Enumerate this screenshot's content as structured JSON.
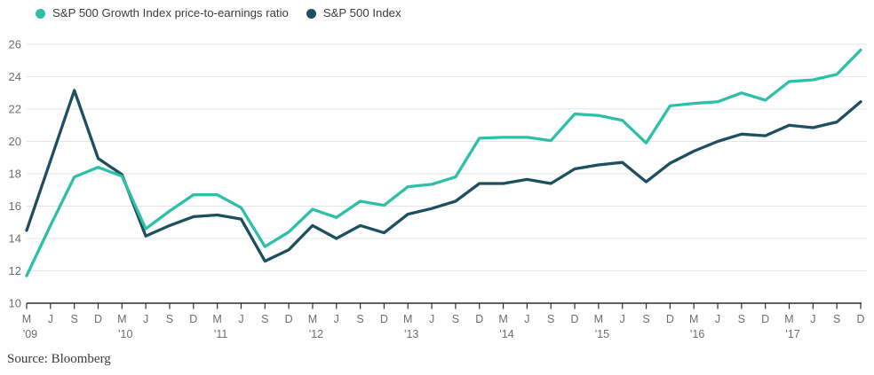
{
  "legend": {
    "items": [
      {
        "label": "S&P 500 Growth Index price-to-earnings ratio"
      },
      {
        "label": "S&P 500 Index"
      }
    ]
  },
  "source_note": "Source: Bloomberg",
  "chart_data": {
    "type": "line",
    "title": "",
    "xlabel": "",
    "ylabel": "",
    "ylim": [
      10,
      26
    ],
    "y_ticks": [
      10,
      12,
      14,
      16,
      18,
      20,
      22,
      24,
      26
    ],
    "grid": "horizontal",
    "legend_position": "top-left",
    "x_tick_labels": [
      "M",
      "J",
      "S",
      "D",
      "M",
      "J",
      "S",
      "D",
      "M",
      "J",
      "S",
      "D",
      "M",
      "J",
      "S",
      "D",
      "M",
      "J",
      "S",
      "D",
      "M",
      "J",
      "S",
      "D",
      "M",
      "J",
      "S",
      "D",
      "M",
      "J",
      "S",
      "D",
      "M",
      "J",
      "S",
      "D"
    ],
    "x_year_labels": [
      "'09",
      "'10",
      "'11",
      "'12",
      "'13",
      "'14",
      "'15",
      "'16",
      "'17"
    ],
    "x_year_tick_indices": [
      0,
      4,
      8,
      12,
      16,
      20,
      24,
      28,
      32
    ],
    "series": [
      {
        "name": "S&P 500 Growth Index price-to-earnings ratio",
        "color": "#2ec0a6",
        "values": [
          11.7,
          14.8,
          17.8,
          18.4,
          17.85,
          14.6,
          15.7,
          16.7,
          16.7,
          15.9,
          13.5,
          14.4,
          15.8,
          15.3,
          16.3,
          16.05,
          17.2,
          17.35,
          17.8,
          20.2,
          20.25,
          20.25,
          20.05,
          21.7,
          21.6,
          21.3,
          19.9,
          22.2,
          22.35,
          22.45,
          23.0,
          22.55,
          23.7,
          23.8,
          24.15,
          25.65
        ]
      },
      {
        "name": "S&P 500 Index",
        "color": "#1e4f61",
        "values": [
          14.5,
          18.8,
          23.15,
          18.95,
          17.95,
          14.15,
          14.8,
          15.35,
          15.45,
          15.2,
          12.6,
          13.3,
          14.8,
          14.0,
          14.8,
          14.35,
          15.5,
          15.85,
          16.3,
          17.4,
          17.4,
          17.65,
          17.4,
          18.3,
          18.55,
          18.7,
          17.5,
          18.65,
          19.4,
          20.0,
          20.45,
          20.35,
          21.0,
          20.85,
          21.2,
          22.45
        ]
      }
    ],
    "colors": {
      "grid": "#e5e5e5",
      "axis": "#2e2e2e",
      "tick_label": "#6e6e6e",
      "legend_text": "#3c3c3c"
    }
  }
}
